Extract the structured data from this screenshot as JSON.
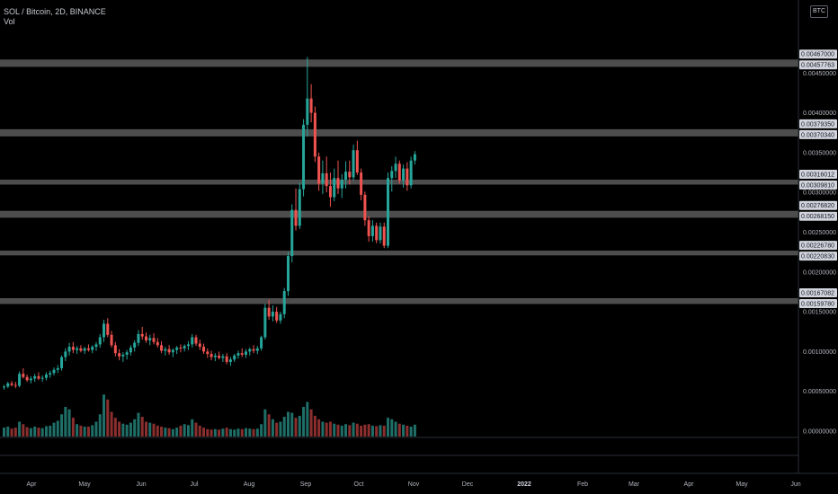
{
  "header": {
    "symbol_line": "SOL / Bitcoin, 2D, BINANCE",
    "indicator_label": "Vol"
  },
  "currency_button": "BTC",
  "colors": {
    "background": "#000000",
    "up": "#26a69a",
    "down": "#ef5350",
    "vol_up": "#1f6f68",
    "vol_down": "#8a2f2e",
    "level_band": "#5a5a5a",
    "tag_bg": "#d1d4dc",
    "axis_text": "#b2b5be",
    "separator": "#2a2e39"
  },
  "chart_data": {
    "type": "candlestick",
    "y_ticks": [
      "0.00450000",
      "0.00400000",
      "0.00350000",
      "0.00300000",
      "0.00250000",
      "0.00200000",
      "0.00150000",
      "0.00100000",
      "0.00050000",
      "0.00000000"
    ],
    "y_tick_values": [
      0.0045,
      0.004,
      0.0035,
      0.003,
      0.0025,
      0.002,
      0.0015,
      0.001,
      0.0005,
      0.0
    ],
    "x_ticks": [
      "Apr",
      "May",
      "Jun",
      "Jul",
      "Aug",
      "Sep",
      "Oct",
      "Nov",
      "Dec",
      "2022",
      "Feb",
      "Mar",
      "Apr",
      "May",
      "Jun"
    ],
    "x_tick_bold": "2022",
    "levels": [
      {
        "top": "0.00467000",
        "bottom": "0.00457763",
        "top_value": 0.00467,
        "bottom_value": 0.00457763
      },
      {
        "top": "0.00379350",
        "bottom": "0.00370340",
        "top_value": 0.0037935,
        "bottom_value": 0.0037034
      },
      {
        "top": "0.00316012",
        "bottom": "0.00309810",
        "top_value": 0.00316012,
        "bottom_value": 0.0030981
      },
      {
        "top": "0.00276820",
        "bottom": "0.00268150",
        "top_value": 0.0027682,
        "bottom_value": 0.0026815
      },
      {
        "top": "0.00226780",
        "bottom": "0.00220830",
        "top_value": 0.0022678,
        "bottom_value": 0.0022083
      },
      {
        "top": "0.00167082",
        "bottom": "0.00159780",
        "top_value": 0.00167082,
        "bottom_value": 0.0015978
      }
    ],
    "candles": [
      [
        0.00055,
        0.00058,
        0.00052,
        0.00056
      ],
      [
        0.00056,
        0.00062,
        0.00054,
        0.0006
      ],
      [
        0.0006,
        0.00063,
        0.00056,
        0.00058
      ],
      [
        0.00058,
        0.00062,
        0.00054,
        0.00057
      ],
      [
        0.00057,
        0.00075,
        0.00055,
        0.00072
      ],
      [
        0.00072,
        0.00079,
        0.00066,
        0.00068
      ],
      [
        0.00068,
        0.00071,
        0.00062,
        0.00064
      ],
      [
        0.00064,
        0.00069,
        0.0006,
        0.00066
      ],
      [
        0.00066,
        0.00072,
        0.00062,
        0.00069
      ],
      [
        0.00069,
        0.00074,
        0.00064,
        0.00066
      ],
      [
        0.00066,
        0.0007,
        0.00062,
        0.00067
      ],
      [
        0.00067,
        0.00074,
        0.00064,
        0.00071
      ],
      [
        0.00071,
        0.00076,
        0.00067,
        0.00073
      ],
      [
        0.00073,
        0.0008,
        0.0007,
        0.00077
      ],
      [
        0.00077,
        0.00083,
        0.00073,
        0.00079
      ],
      [
        0.00079,
        0.00095,
        0.00076,
        0.00093
      ],
      [
        0.00093,
        0.00104,
        0.00088,
        0.001
      ],
      [
        0.001,
        0.00111,
        0.00095,
        0.00106
      ],
      [
        0.00106,
        0.00112,
        0.00098,
        0.00102
      ],
      [
        0.00102,
        0.00107,
        0.00097,
        0.00104
      ],
      [
        0.00104,
        0.00108,
        0.00099,
        0.00101
      ],
      [
        0.00101,
        0.00106,
        0.00097,
        0.00104
      ],
      [
        0.00104,
        0.00109,
        0.001,
        0.00102
      ],
      [
        0.00102,
        0.00108,
        0.00098,
        0.00106
      ],
      [
        0.00106,
        0.00112,
        0.00101,
        0.00109
      ],
      [
        0.00109,
        0.00122,
        0.00105,
        0.00118
      ],
      [
        0.00118,
        0.0014,
        0.00112,
        0.00135
      ],
      [
        0.00135,
        0.00142,
        0.00118,
        0.00121
      ],
      [
        0.00121,
        0.00126,
        0.00105,
        0.00108
      ],
      [
        0.00108,
        0.00112,
        0.00094,
        0.00098
      ],
      [
        0.00098,
        0.00103,
        0.00089,
        0.00094
      ],
      [
        0.00094,
        0.00099,
        0.00087,
        0.00096
      ],
      [
        0.00096,
        0.00102,
        0.0009,
        0.00099
      ],
      [
        0.00099,
        0.00108,
        0.00095,
        0.00105
      ],
      [
        0.00105,
        0.00114,
        0.001,
        0.00111
      ],
      [
        0.00111,
        0.00127,
        0.00107,
        0.00122
      ],
      [
        0.00122,
        0.00131,
        0.00115,
        0.00119
      ],
      [
        0.00119,
        0.00124,
        0.00111,
        0.00114
      ],
      [
        0.00114,
        0.00121,
        0.00108,
        0.00117
      ],
      [
        0.00117,
        0.00123,
        0.00109,
        0.00112
      ],
      [
        0.00112,
        0.00117,
        0.00105,
        0.00108
      ],
      [
        0.00108,
        0.00113,
        0.00098,
        0.00101
      ],
      [
        0.00101,
        0.00106,
        0.00095,
        0.00103
      ],
      [
        0.00103,
        0.00108,
        0.00096,
        0.00099
      ],
      [
        0.00099,
        0.00104,
        0.00093,
        0.00102
      ],
      [
        0.00102,
        0.00107,
        0.00097,
        0.00105
      ],
      [
        0.00105,
        0.00109,
        0.00099,
        0.00104
      ],
      [
        0.00104,
        0.00109,
        0.001,
        0.00107
      ],
      [
        0.00107,
        0.00113,
        0.00102,
        0.00109
      ],
      [
        0.00109,
        0.00122,
        0.00105,
        0.00118
      ],
      [
        0.00118,
        0.00121,
        0.00107,
        0.0011
      ],
      [
        0.0011,
        0.00115,
        0.00102,
        0.00106
      ],
      [
        0.00106,
        0.0011,
        0.00097,
        0.001
      ],
      [
        0.001,
        0.00104,
        0.00092,
        0.00097
      ],
      [
        0.00097,
        0.00101,
        0.00089,
        0.00093
      ],
      [
        0.00093,
        0.00098,
        0.00088,
        0.00095
      ],
      [
        0.00095,
        0.001,
        0.0009,
        0.00092
      ],
      [
        0.00092,
        0.00097,
        0.00087,
        0.00094
      ],
      [
        0.00094,
        0.00098,
        0.00084,
        0.00087
      ],
      [
        0.00087,
        0.00093,
        0.00082,
        0.0009
      ],
      [
        0.0009,
        0.00097,
        0.00087,
        0.00095
      ],
      [
        0.00095,
        0.00101,
        0.00091,
        0.00098
      ],
      [
        0.00098,
        0.00104,
        0.00093,
        0.00096
      ],
      [
        0.00096,
        0.00103,
        0.00092,
        0.001
      ],
      [
        0.001,
        0.00105,
        0.00095,
        0.00103
      ],
      [
        0.00103,
        0.00108,
        0.00098,
        0.00101
      ],
      [
        0.00101,
        0.00107,
        0.00097,
        0.00104
      ],
      [
        0.00104,
        0.0012,
        0.00101,
        0.00118
      ],
      [
        0.00118,
        0.0016,
        0.00115,
        0.00155
      ],
      [
        0.00155,
        0.00165,
        0.0014,
        0.00144
      ],
      [
        0.00144,
        0.00158,
        0.00138,
        0.0015
      ],
      [
        0.0015,
        0.00156,
        0.00136,
        0.00139
      ],
      [
        0.00139,
        0.0015,
        0.00135,
        0.00147
      ],
      [
        0.00147,
        0.0018,
        0.00142,
        0.00176
      ],
      [
        0.00176,
        0.00225,
        0.0017,
        0.0022
      ],
      [
        0.0022,
        0.00285,
        0.00212,
        0.00278
      ],
      [
        0.00278,
        0.00305,
        0.00252,
        0.00258
      ],
      [
        0.00258,
        0.00312,
        0.00254,
        0.00304
      ],
      [
        0.00304,
        0.00392,
        0.00295,
        0.00385
      ],
      [
        0.00385,
        0.0047,
        0.0037,
        0.00418
      ],
      [
        0.00418,
        0.00436,
        0.00388,
        0.004
      ],
      [
        0.004,
        0.00408,
        0.00338,
        0.00345
      ],
      [
        0.00345,
        0.0035,
        0.00302,
        0.00311
      ],
      [
        0.00311,
        0.0034,
        0.00298,
        0.00324
      ],
      [
        0.00324,
        0.00345,
        0.003,
        0.00308
      ],
      [
        0.00308,
        0.00325,
        0.00282,
        0.00294
      ],
      [
        0.00294,
        0.0033,
        0.00289,
        0.00318
      ],
      [
        0.00318,
        0.0034,
        0.00298,
        0.00305
      ],
      [
        0.00305,
        0.00323,
        0.00293,
        0.00316
      ],
      [
        0.00316,
        0.00339,
        0.00305,
        0.00326
      ],
      [
        0.00326,
        0.0034,
        0.0031,
        0.00319
      ],
      [
        0.00319,
        0.0036,
        0.00315,
        0.00353
      ],
      [
        0.00353,
        0.00365,
        0.00322,
        0.00325
      ],
      [
        0.00325,
        0.0033,
        0.0029,
        0.00297
      ],
      [
        0.00297,
        0.00301,
        0.00258,
        0.00265
      ],
      [
        0.00265,
        0.0027,
        0.00238,
        0.00245
      ],
      [
        0.00245,
        0.00265,
        0.00238,
        0.00258
      ],
      [
        0.00258,
        0.00262,
        0.00236,
        0.0024
      ],
      [
        0.0024,
        0.00262,
        0.00236,
        0.00257
      ],
      [
        0.00257,
        0.00262,
        0.0023,
        0.00233
      ],
      [
        0.00233,
        0.00325,
        0.0023,
        0.00318
      ],
      [
        0.00318,
        0.00333,
        0.00301,
        0.00327
      ],
      [
        0.00327,
        0.00345,
        0.00318,
        0.00336
      ],
      [
        0.00336,
        0.0034,
        0.00311,
        0.00315
      ],
      [
        0.00315,
        0.00335,
        0.00306,
        0.0033
      ],
      [
        0.0033,
        0.00338,
        0.00302,
        0.00309
      ],
      [
        0.00309,
        0.00345,
        0.00305,
        0.0034
      ],
      [
        0.0034,
        0.00352,
        0.00335,
        0.00348
      ]
    ],
    "volumes": [
      0.18,
      0.2,
      0.16,
      0.18,
      0.3,
      0.25,
      0.19,
      0.17,
      0.2,
      0.18,
      0.17,
      0.21,
      0.22,
      0.28,
      0.32,
      0.45,
      0.6,
      0.55,
      0.38,
      0.25,
      0.22,
      0.2,
      0.2,
      0.23,
      0.3,
      0.45,
      0.85,
      0.75,
      0.5,
      0.38,
      0.3,
      0.26,
      0.24,
      0.28,
      0.35,
      0.48,
      0.4,
      0.3,
      0.28,
      0.26,
      0.22,
      0.2,
      0.18,
      0.17,
      0.15,
      0.18,
      0.22,
      0.25,
      0.23,
      0.35,
      0.28,
      0.22,
      0.18,
      0.15,
      0.14,
      0.15,
      0.14,
      0.16,
      0.18,
      0.15,
      0.14,
      0.16,
      0.15,
      0.17,
      0.16,
      0.15,
      0.16,
      0.25,
      0.55,
      0.45,
      0.35,
      0.28,
      0.3,
      0.4,
      0.5,
      0.48,
      0.38,
      0.42,
      0.6,
      0.7,
      0.55,
      0.42,
      0.35,
      0.3,
      0.28,
      0.3,
      0.26,
      0.24,
      0.22,
      0.25,
      0.23,
      0.28,
      0.26,
      0.22,
      0.24,
      0.25,
      0.22,
      0.21,
      0.23,
      0.22,
      0.38,
      0.35,
      0.3,
      0.26,
      0.24,
      0.22,
      0.2,
      0.24
    ]
  }
}
